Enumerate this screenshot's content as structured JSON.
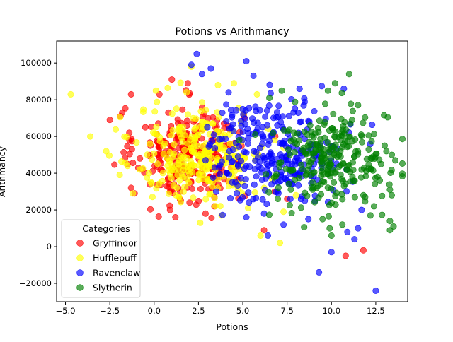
{
  "chart_data": {
    "type": "scatter",
    "title": "Potions vs Arithmancy",
    "xlabel": "Potions",
    "ylabel": "Arithmancy",
    "xlim": [
      -5.5,
      14.3
    ],
    "ylim": [
      -30000,
      112000
    ],
    "xticks": [
      -5.0,
      -2.5,
      0.0,
      2.5,
      5.0,
      7.5,
      10.0,
      12.5
    ],
    "xtick_labels": [
      "−5.0",
      "−2.5",
      "0.0",
      "2.5",
      "5.0",
      "7.5",
      "10.0",
      "12.5"
    ],
    "yticks": [
      -20000,
      0,
      20000,
      40000,
      60000,
      80000,
      100000
    ],
    "ytick_labels": [
      "−20000",
      "0",
      "20000",
      "40000",
      "60000",
      "80000",
      "100000"
    ],
    "grid": false,
    "legend": {
      "title": "Categories",
      "placement": "lower-left"
    },
    "series": [
      {
        "name": "Gryffindor",
        "color": "#ff0000",
        "clusters": [
          {
            "cx": 2.0,
            "cy": 50000,
            "sx": 1.5,
            "sy": 13000,
            "n": 260
          }
        ],
        "points": [
          [
            -2.5,
            69000
          ],
          [
            -1.9,
            71000
          ],
          [
            -1.8,
            73000
          ],
          [
            -1.3,
            83000
          ],
          [
            -1.4,
            62000
          ],
          [
            -1.4,
            58000
          ],
          [
            -0.8,
            48000
          ],
          [
            -1.3,
            32000
          ],
          [
            -1.1,
            29000
          ],
          [
            -1.5,
            45000
          ],
          [
            -0.5,
            65000
          ],
          [
            1.0,
            91000
          ],
          [
            1.9,
            89000
          ],
          [
            0.3,
            83000
          ],
          [
            0.8,
            73000
          ],
          [
            0.5,
            57000
          ],
          [
            0.9,
            20000
          ],
          [
            1.2,
            16000
          ],
          [
            1.5,
            25000
          ],
          [
            2.0,
            24000
          ],
          [
            2.9,
            18000
          ],
          [
            3.4,
            22000
          ],
          [
            6.2,
            9000
          ],
          [
            10.8,
            -5000
          ],
          [
            11.8,
            -2000
          ],
          [
            7.5,
            26000
          ],
          [
            6.8,
            30000
          ],
          [
            4.8,
            46000
          ]
        ]
      },
      {
        "name": "Hufflepuff",
        "color": "#ffff00",
        "clusters": [
          {
            "cx": 2.7,
            "cy": 50000,
            "sx": 1.8,
            "sy": 13000,
            "n": 280
          }
        ],
        "points": [
          [
            -4.7,
            83000
          ],
          [
            -3.6,
            60000
          ],
          [
            -2.7,
            52000
          ],
          [
            -1.5,
            44000
          ],
          [
            -1.2,
            29000
          ],
          [
            -0.8,
            42000
          ],
          [
            -0.3,
            40000
          ],
          [
            0.1,
            85000
          ],
          [
            2.1,
            98000
          ],
          [
            3.6,
            88000
          ],
          [
            4.5,
            89000
          ],
          [
            5.8,
            83000
          ],
          [
            5.3,
            21000
          ],
          [
            3.8,
            17000
          ],
          [
            2.6,
            13000
          ],
          [
            6.0,
            6000
          ],
          [
            7.1,
            2000
          ],
          [
            7.3,
            19000
          ],
          [
            8.0,
            28000
          ],
          [
            6.2,
            32000
          ],
          [
            6.9,
            38000
          ],
          [
            6.8,
            58000
          ]
        ]
      },
      {
        "name": "Ravenclaw",
        "color": "#0000ff",
        "clusters": [
          {
            "cx": 6.8,
            "cy": 52000,
            "sx": 1.9,
            "sy": 14000,
            "n": 270
          }
        ],
        "points": [
          [
            2.4,
            105000
          ],
          [
            5.2,
            101000
          ],
          [
            2.1,
            99000
          ],
          [
            3.2,
            97000
          ],
          [
            5.6,
            93000
          ],
          [
            2.7,
            94000
          ],
          [
            10.7,
            86000
          ],
          [
            8.2,
            86000
          ],
          [
            9.3,
            -14000
          ],
          [
            12.5,
            -24000
          ],
          [
            10.0,
            -3000
          ],
          [
            10.9,
            8000
          ],
          [
            11.3,
            4000
          ],
          [
            11.5,
            10000
          ],
          [
            8.7,
            15000
          ],
          [
            7.3,
            12000
          ],
          [
            5.2,
            16000
          ],
          [
            6.2,
            18000
          ],
          [
            8.5,
            25000
          ],
          [
            3.5,
            30000
          ],
          [
            3.0,
            65000
          ],
          [
            4.2,
            84000
          ],
          [
            11.7,
            20000
          ]
        ]
      },
      {
        "name": "Slytherin",
        "color": "#008000",
        "clusters": [
          {
            "cx": 10.0,
            "cy": 47000,
            "sx": 1.6,
            "sy": 13000,
            "n": 260
          }
        ],
        "points": [
          [
            11.0,
            94000
          ],
          [
            10.2,
            89000
          ],
          [
            9.8,
            85000
          ],
          [
            7.2,
            85000
          ],
          [
            6.5,
            81000
          ],
          [
            4.8,
            58000
          ],
          [
            5.7,
            61000
          ],
          [
            13.0,
            55000
          ],
          [
            13.4,
            50000
          ],
          [
            13.6,
            47000
          ],
          [
            12.8,
            45000
          ],
          [
            13.3,
            31000
          ],
          [
            13.4,
            28000
          ],
          [
            13.3,
            14000
          ],
          [
            13.5,
            11000
          ],
          [
            13.3,
            9000
          ],
          [
            12.2,
            17000
          ],
          [
            11.9,
            27000
          ],
          [
            12.6,
            38000
          ],
          [
            13.1,
            52000
          ],
          [
            10.0,
            6000
          ],
          [
            9.9,
            10000
          ],
          [
            9.5,
            15000
          ],
          [
            12.4,
            22000
          ],
          [
            11.8,
            28000
          ],
          [
            7.9,
            62000
          ],
          [
            8.8,
            66000
          ]
        ]
      }
    ]
  }
}
